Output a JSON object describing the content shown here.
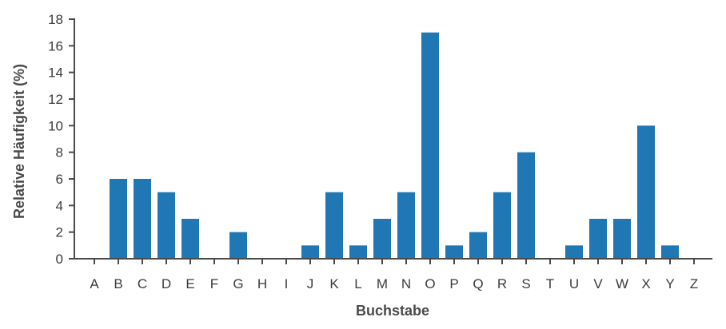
{
  "chart_data": {
    "type": "bar",
    "title": "",
    "xlabel": "Buchstabe",
    "ylabel": "Relative Häufigkeit (%)",
    "categories": [
      "A",
      "B",
      "C",
      "D",
      "E",
      "F",
      "G",
      "H",
      "I",
      "J",
      "K",
      "L",
      "M",
      "N",
      "O",
      "P",
      "Q",
      "R",
      "S",
      "T",
      "U",
      "V",
      "W",
      "X",
      "Y",
      "Z"
    ],
    "values": [
      0,
      6,
      6,
      5,
      3,
      0,
      2,
      0,
      0,
      1,
      5,
      1,
      3,
      5,
      17,
      1,
      2,
      5,
      8,
      0,
      1,
      3,
      3,
      10,
      1,
      0
    ],
    "ylim": [
      0,
      18
    ],
    "yticks": [
      0,
      2,
      4,
      6,
      8,
      10,
      12,
      14,
      16,
      18
    ],
    "grid": false,
    "bar_color": "#1f77b4",
    "axis_color": "#4a4a4a"
  }
}
